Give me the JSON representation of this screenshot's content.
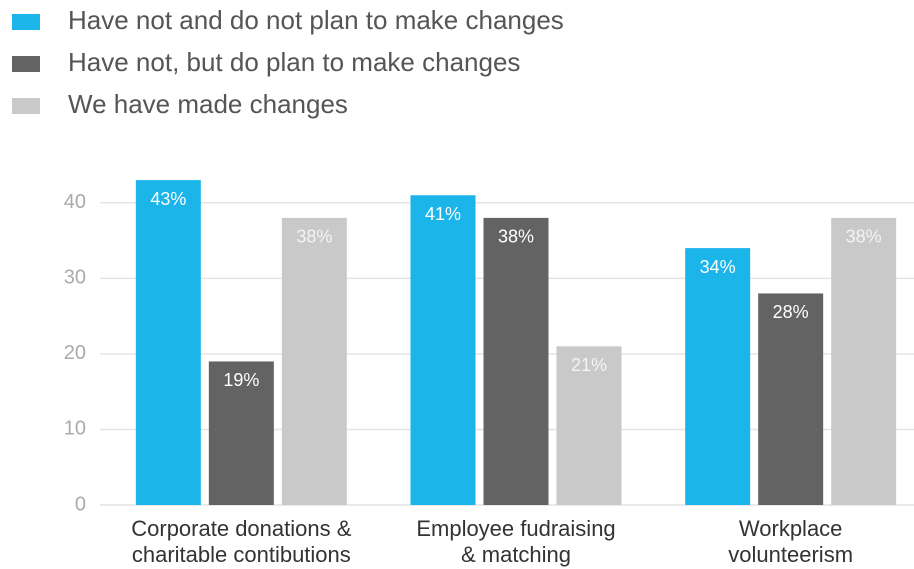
{
  "chart_data": {
    "type": "bar",
    "categories": [
      [
        "Corporate donations &",
        "charitable contibutions"
      ],
      [
        "Employee fudraising",
        "& matching"
      ],
      [
        "Workplace",
        "volunteerism"
      ]
    ],
    "series": [
      {
        "name": "Have not and do not plan to make changes",
        "color": "#1bb5ea",
        "values": [
          43,
          41,
          34
        ],
        "value_labels": [
          "43%",
          "41%",
          "34%"
        ]
      },
      {
        "name": "Have not, but do plan to make changes",
        "color": "#636363",
        "values": [
          19,
          38,
          28
        ],
        "value_labels": [
          "19%",
          "38%",
          "28%"
        ]
      },
      {
        "name": "We have made changes",
        "color": "#c9c9c9",
        "values": [
          38,
          21,
          38
        ],
        "value_labels": [
          "38%",
          "21%",
          "38%"
        ]
      }
    ],
    "ylim": [
      0,
      45
    ],
    "yticks": [
      0,
      10,
      20,
      30,
      40
    ],
    "grid": true,
    "legend": "top-left"
  }
}
